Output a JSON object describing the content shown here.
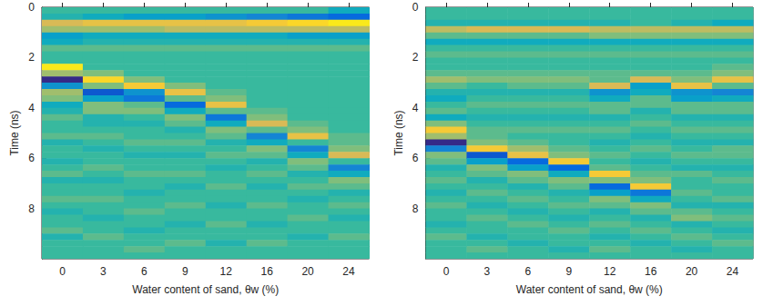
{
  "chart_data": [
    {
      "type": "heatmap",
      "xlabel": "Water content of sand, θw (%)",
      "ylabel": "Time (ns)",
      "categories": [
        "0",
        "3",
        "6",
        "9",
        "12",
        "16",
        "20",
        "24"
      ],
      "time_bins": [
        0,
        0.25,
        0.5,
        0.75,
        1,
        1.25,
        1.5,
        1.75,
        2,
        2.25,
        2.5,
        2.75,
        3,
        3.25,
        3.5,
        3.75,
        4,
        4.25,
        4.5,
        4.75,
        5,
        5.25,
        5.5,
        5.75,
        6,
        6.25,
        6.5,
        6.75,
        7,
        7.25,
        7.5,
        7.75,
        8,
        8.25,
        8.5,
        8.75,
        9,
        9.25,
        9.5,
        9.75,
        10
      ],
      "ylim": [
        0,
        10
      ],
      "yticks": [
        0,
        2,
        4,
        6,
        8
      ],
      "zlim": [
        -1,
        1
      ],
      "values": [
        [
          0,
          -0.1,
          0.5,
          0.3,
          -0.3,
          -0.2,
          0.1,
          0,
          0,
          0.9,
          0.3,
          -1.0,
          -0.4,
          0.3,
          0.2,
          -0.2,
          -0.1,
          0.1,
          0,
          0,
          0.1,
          -0.1,
          0,
          0,
          -0.1,
          0,
          0.1,
          -0.1,
          0,
          0,
          0.1,
          0,
          -0.1,
          0,
          0,
          0.1,
          -0.1,
          0,
          0,
          0
        ],
        [
          0,
          -0.2,
          0.6,
          0.3,
          -0.2,
          -0.1,
          0.1,
          0,
          0,
          0,
          0.2,
          0.8,
          0.2,
          -0.8,
          -0.3,
          0.2,
          0.2,
          -0.1,
          -0.1,
          0,
          0.1,
          0,
          -0.1,
          0,
          0,
          0.1,
          0,
          -0.1,
          0,
          0,
          0.1,
          0,
          0,
          -0.1,
          0,
          0,
          0.1,
          0,
          0,
          0
        ],
        [
          0,
          -0.3,
          0.6,
          0.3,
          -0.2,
          -0.1,
          0.1,
          0,
          0,
          0,
          0,
          0.2,
          0.7,
          -0.4,
          -0.6,
          0.1,
          0.2,
          0,
          -0.1,
          0,
          0,
          0.1,
          0,
          -0.1,
          0,
          0,
          0.1,
          0,
          0,
          -0.1,
          0,
          0,
          0.1,
          0,
          0,
          -0.1,
          0,
          0,
          0.1,
          0
        ],
        [
          0,
          -0.3,
          0.6,
          0.4,
          -0.2,
          -0.1,
          0.1,
          0,
          0,
          0,
          0,
          0,
          0.2,
          0.6,
          0.1,
          -0.7,
          -0.2,
          0.2,
          0.1,
          -0.1,
          0,
          0.1,
          0,
          -0.1,
          0,
          0,
          0.1,
          0,
          -0.1,
          0,
          0,
          0.1,
          0,
          0,
          -0.1,
          0,
          0,
          0.1,
          0,
          0
        ],
        [
          0,
          -0.4,
          0.6,
          0.4,
          -0.2,
          -0.1,
          0.1,
          0,
          0,
          0,
          0,
          0,
          0,
          0.1,
          0.2,
          0.6,
          0.1,
          -0.6,
          -0.2,
          0.2,
          0.1,
          -0.1,
          0,
          0.1,
          0,
          -0.1,
          0,
          0,
          0.1,
          0,
          0,
          -0.1,
          0,
          0,
          0.1,
          0,
          0,
          -0.1,
          0,
          0
        ],
        [
          0,
          -0.5,
          0.7,
          0.4,
          -0.2,
          -0.1,
          0.1,
          0,
          0,
          0,
          0,
          0,
          0,
          0,
          0,
          0,
          0.1,
          0.2,
          0.5,
          0.1,
          -0.5,
          -0.2,
          0.2,
          0.1,
          -0.1,
          0,
          0.1,
          0,
          -0.1,
          0,
          0,
          0.1,
          0,
          0,
          -0.1,
          0,
          0,
          0.1,
          0,
          0
        ],
        [
          0,
          -0.6,
          0.8,
          0.4,
          -0.3,
          -0.1,
          0.1,
          0,
          0,
          0,
          0,
          0,
          0,
          0,
          0,
          0,
          0,
          0,
          0.1,
          0.2,
          0.6,
          0,
          -0.5,
          -0.2,
          0.2,
          0.1,
          -0.1,
          0,
          0.1,
          0,
          -0.1,
          0,
          0,
          0.1,
          0,
          0,
          -0.1,
          0,
          0,
          0
        ],
        [
          -0.2,
          -0.7,
          0.9,
          0.4,
          -0.3,
          -0.1,
          0.1,
          0,
          0,
          0,
          0,
          0,
          0,
          0,
          0,
          0,
          0,
          0,
          0,
          0,
          0.1,
          0.1,
          0.2,
          0.5,
          0,
          -0.5,
          -0.2,
          0.2,
          0.1,
          -0.1,
          0,
          0.1,
          0,
          -0.1,
          0,
          0,
          0.1,
          0,
          0,
          0
        ]
      ]
    },
    {
      "type": "heatmap",
      "xlabel": "Water content of sand, θw (%)",
      "ylabel": "Time (ns)",
      "categories": [
        "0",
        "3",
        "6",
        "9",
        "12",
        "16",
        "20",
        "24"
      ],
      "time_bins": [
        0,
        0.25,
        0.5,
        0.75,
        1,
        1.25,
        1.5,
        1.75,
        2,
        2.25,
        2.5,
        2.75,
        3,
        3.25,
        3.5,
        3.75,
        4,
        4.25,
        4.5,
        4.75,
        5,
        5.25,
        5.5,
        5.75,
        6,
        6.25,
        6.5,
        6.75,
        7,
        7.25,
        7.5,
        7.75,
        8,
        8.25,
        8.5,
        8.75,
        9,
        9.25,
        9.5,
        9.75,
        10
      ],
      "ylim": [
        0,
        10
      ],
      "yticks": [
        0,
        2,
        4,
        6,
        8
      ],
      "zlim": [
        -1,
        1
      ],
      "values": [
        [
          0,
          0,
          -0.1,
          0.4,
          0.1,
          -0.2,
          0,
          0.1,
          0,
          0,
          0.1,
          0.3,
          0.1,
          -0.1,
          -0.2,
          0,
          0.1,
          -0.2,
          0.2,
          0.7,
          0.3,
          -1.0,
          -0.5,
          0.2,
          0.1,
          -0.1,
          0,
          0.1,
          0,
          -0.1,
          0,
          0.1,
          0,
          0,
          -0.1,
          0,
          0.1,
          0,
          0,
          0
        ],
        [
          0,
          0,
          -0.1,
          0.5,
          0.1,
          -0.2,
          0,
          0.1,
          0,
          0,
          0.1,
          0.2,
          0,
          -0.1,
          0,
          0.1,
          0,
          -0.1,
          0,
          0.1,
          0.1,
          0.2,
          0.7,
          -0.8,
          -0.3,
          0.2,
          0.1,
          -0.1,
          0,
          0.1,
          0,
          -0.1,
          0,
          0.1,
          0,
          0,
          -0.1,
          0,
          0.1,
          0
        ],
        [
          0,
          0,
          -0.1,
          0.5,
          0.1,
          -0.2,
          0,
          0.1,
          0,
          0,
          0.1,
          0.2,
          0.1,
          -0.1,
          0,
          0.1,
          0,
          -0.1,
          0,
          0.1,
          0,
          0.1,
          0.3,
          0.6,
          -0.7,
          -0.3,
          0.2,
          0.1,
          -0.1,
          0,
          0.1,
          0,
          -0.1,
          0,
          0.1,
          0,
          0,
          -0.1,
          0,
          0
        ],
        [
          0,
          0,
          -0.1,
          0.5,
          0.1,
          -0.2,
          0,
          0.1,
          0,
          0,
          0.1,
          0.2,
          0.1,
          -0.1,
          0,
          0.1,
          0,
          -0.1,
          0,
          0.1,
          0,
          0,
          0.1,
          0.2,
          0.7,
          -0.7,
          -0.2,
          0.2,
          0.1,
          -0.1,
          0,
          0.1,
          0,
          -0.1,
          0,
          0.1,
          0,
          0,
          -0.1,
          0
        ],
        [
          0,
          0,
          -0.1,
          0.4,
          0.2,
          -0.2,
          0,
          0.1,
          0,
          0,
          0.1,
          0.1,
          0.5,
          -0.4,
          -0.2,
          0.1,
          0.1,
          -0.1,
          0,
          0.1,
          0,
          -0.1,
          0,
          0.1,
          0,
          0.1,
          0.7,
          0.2,
          -0.7,
          -0.3,
          0.2,
          0.1,
          -0.1,
          0,
          0.1,
          0,
          -0.1,
          0,
          0.1,
          0
        ],
        [
          0,
          0,
          0,
          0.4,
          0.2,
          -0.2,
          0,
          0.1,
          0,
          0,
          0.1,
          0.5,
          -0.3,
          -0.2,
          0.1,
          0.1,
          -0.1,
          0,
          0.1,
          0,
          -0.1,
          0,
          0.1,
          0,
          -0.1,
          0,
          0.1,
          0.2,
          0.7,
          -0.6,
          -0.2,
          0.2,
          0.1,
          -0.1,
          0,
          0.1,
          0,
          -0.1,
          0,
          0
        ],
        [
          0,
          0,
          -0.1,
          0.4,
          0.2,
          -0.2,
          0,
          0.1,
          0,
          0,
          0.1,
          0.2,
          0.6,
          -0.4,
          -0.3,
          0.1,
          0.1,
          -0.1,
          0,
          0.1,
          0,
          -0.1,
          0,
          0.1,
          0,
          -0.1,
          0.1,
          0,
          0,
          0.1,
          0,
          -0.1,
          0.1,
          0.2,
          -0.1,
          0,
          0.1,
          0,
          -0.1,
          0
        ],
        [
          0,
          0,
          -0.2,
          0.4,
          0.2,
          -0.2,
          0,
          0.1,
          0,
          0.1,
          0.2,
          0.6,
          0.1,
          -0.5,
          -0.2,
          0.1,
          0.1,
          -0.1,
          0,
          0.1,
          0,
          -0.1,
          0.1,
          0.1,
          0,
          -0.1,
          0,
          0.1,
          0,
          0,
          0.1,
          -0.1,
          0,
          0.1,
          0,
          -0.1,
          0,
          0.1,
          0,
          0
        ]
      ]
    }
  ]
}
